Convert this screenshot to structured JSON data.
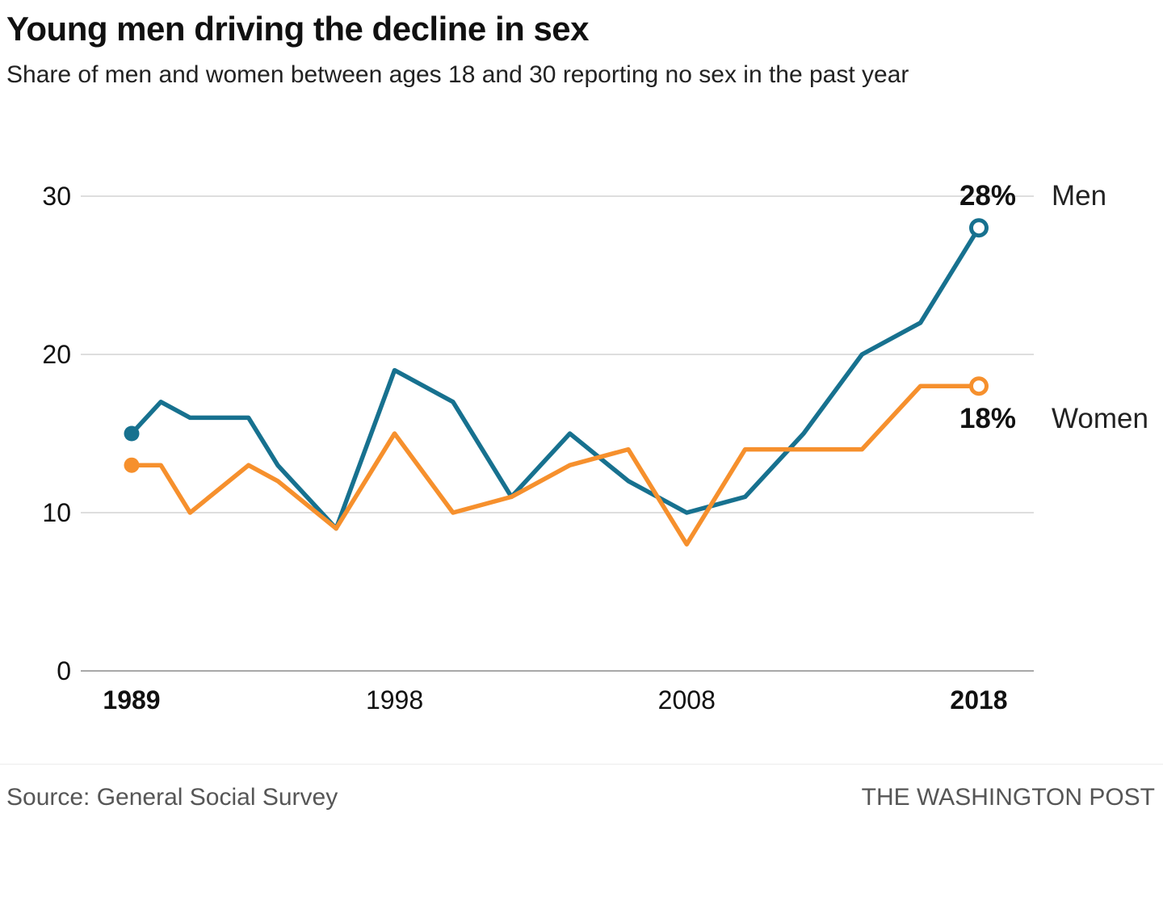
{
  "chart_data": {
    "type": "line",
    "title": "Young men driving the decline in sex",
    "subtitle": "Share of men and women between ages 18 and 30 reporting no sex in the past year",
    "unit": "%",
    "x": [
      1989,
      1990,
      1991,
      1993,
      1994,
      1996,
      1998,
      2000,
      2002,
      2004,
      2006,
      2008,
      2010,
      2012,
      2014,
      2016,
      2018
    ],
    "series": [
      {
        "name": "Men",
        "color": "#17718f",
        "values": [
          15,
          17,
          16,
          16,
          13,
          9,
          19,
          17,
          11,
          15,
          12,
          10,
          11,
          15,
          20,
          22,
          28
        ],
        "end_label": "28%",
        "label_position": "above"
      },
      {
        "name": "Women",
        "color": "#f6902d",
        "values": [
          13,
          13,
          10,
          13,
          12,
          9,
          15,
          10,
          11,
          13,
          14,
          8,
          14,
          14,
          14,
          18,
          18
        ],
        "end_label": "18%",
        "label_position": "below"
      }
    ],
    "ylim": [
      0,
      30
    ],
    "yticks": [
      0,
      10,
      20,
      30
    ],
    "xticks": [
      1989,
      1998,
      2008,
      2018
    ],
    "grid": true,
    "legend_position": "right-end-of-line-labels",
    "marker_style": "filled dot at series start, open circle at series end"
  },
  "footer": {
    "source": "Source: General Social Survey",
    "brand": "THE WASHINGTON POST"
  }
}
